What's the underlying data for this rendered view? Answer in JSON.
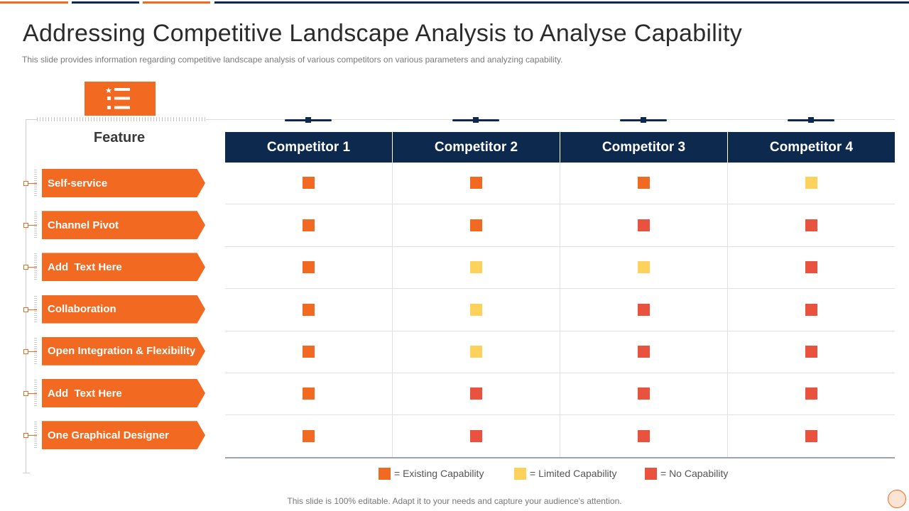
{
  "header": {
    "title": "Addressing Competitive Landscape Analysis to Analyse Capability",
    "subtitle": "This slide provides information regarding competitive landscape analysis of various competitors on various parameters and analyzing capability."
  },
  "icons": {
    "feature_list_icon": "list-with-star-icon"
  },
  "table": {
    "feature_header": "Feature",
    "competitors": [
      "Competitor 1",
      "Competitor 2",
      "Competitor 3",
      "Competitor 4"
    ],
    "features": [
      "Self-service",
      "Channel Pivot",
      "Add  Text Here",
      "Collaboration",
      "Open Integration & Flexibility",
      "Add  Text Here",
      "One Graphical Designer"
    ],
    "ratings": [
      [
        "existing",
        "existing",
        "existing",
        "limited"
      ],
      [
        "existing",
        "existing",
        "none",
        "none"
      ],
      [
        "existing",
        "limited",
        "limited",
        "none"
      ],
      [
        "existing",
        "limited",
        "none",
        "none"
      ],
      [
        "existing",
        "limited",
        "none",
        "none"
      ],
      [
        "existing",
        "none",
        "none",
        "none"
      ],
      [
        "existing",
        "none",
        "none",
        "none"
      ]
    ]
  },
  "legend": {
    "existing": "= Existing Capability",
    "limited": "= Limited Capability",
    "none": "= No Capability"
  },
  "colors": {
    "existing": "#f26a21",
    "limited": "#fcd25a",
    "none": "#e9523f",
    "header_navy": "#0d2a4e",
    "accent_orange": "#f26a21"
  },
  "footer": {
    "note": "This slide is 100% editable. Adapt it to your needs and capture your audience's attention."
  }
}
